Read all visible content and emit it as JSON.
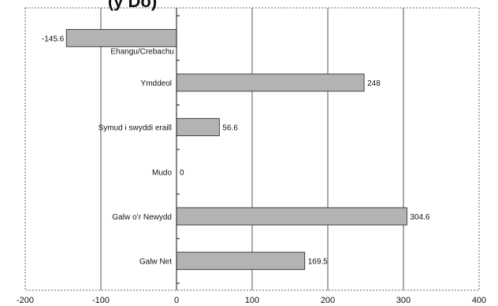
{
  "chart_data": {
    "type": "bar",
    "orientation": "horizontal",
    "title": "(y Do)",
    "categories": [
      "Ehangu/Crebachu",
      "Ymddeol",
      "Symud i swyddi eraill",
      "Mudo",
      "Galw o’r Newydd",
      "Galw Net"
    ],
    "values": [
      -145.6,
      248,
      56.6,
      0,
      304.6,
      169.5
    ],
    "value_labels": [
      "-145.6",
      "248",
      "56.6",
      "0",
      "304.6",
      "169.5"
    ],
    "xlim": [
      -200,
      400
    ],
    "xticks": [
      -200,
      -100,
      0,
      100,
      200,
      300,
      400
    ],
    "xlabel": "",
    "ylabel": "",
    "grid": "vertical",
    "legend": "none",
    "bar_color": "#b3b3b3",
    "bar_edge_color": "#222222"
  }
}
